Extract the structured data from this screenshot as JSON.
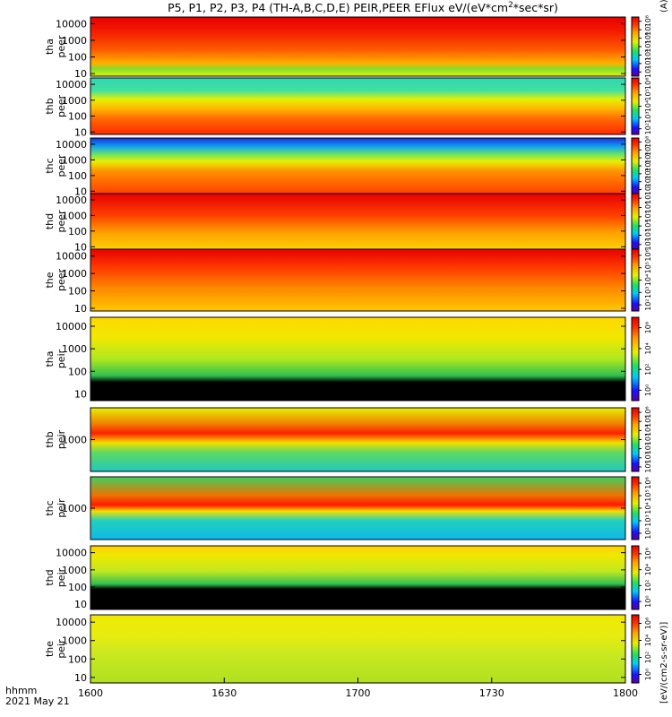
{
  "chart_data": {
    "type": "heatmap",
    "title": "P5, P1, P2, P3, P4 (TH-A,B,C,D,E) PEIR,PEER EFlux eV/(eV*cm^2*sec*sr)",
    "title_parts": {
      "prefix": "P5, P1, P2, P3, P4 (TH-A,B,C,D,E) PEIR,PEER EFlux eV/(eV*cm",
      "sup": "2",
      "suffix": "*sec*sr)"
    },
    "xlabel": "hhmm",
    "date_label": "2021 May 21",
    "x_ticks": [
      "1600",
      "1630",
      "1700",
      "1730",
      "1800"
    ],
    "x_range_minutes": [
      0,
      120
    ],
    "colorbar_label": "[eV/(cm2-s-sr-eV)]",
    "colorbar_partial_label": "(A)",
    "panels": [
      {
        "id": "tha-peer",
        "label1": "tha",
        "label2": "peer",
        "ylim": [
          7,
          25000
        ],
        "y_ticks": [
          "10",
          "100",
          "1000",
          "10000"
        ],
        "cbar_ticks": [
          "10^2",
          "10^3",
          "10^4",
          "10^5",
          "10^6",
          "10^7",
          "10^8"
        ]
      },
      {
        "id": "thb-peer",
        "label1": "thb",
        "label2": "peer",
        "ylim": [
          7,
          25000
        ],
        "y_ticks": [
          "10",
          "100",
          "1000",
          "10000"
        ],
        "cbar_ticks": [
          "10^2",
          "10^3",
          "10^4",
          "10^5",
          "10^6"
        ]
      },
      {
        "id": "thc-peer",
        "label1": "thc",
        "label2": "peer",
        "ylim": [
          7,
          25000
        ],
        "y_ticks": [
          "10",
          "100",
          "1000",
          "10000"
        ],
        "cbar_ticks": [
          "10^2",
          "10^3",
          "10^4",
          "10^5",
          "10^6",
          "10^7",
          "10^8"
        ]
      },
      {
        "id": "thd-peer",
        "label1": "thd",
        "label2": "peer",
        "ylim": [
          7,
          25000
        ],
        "y_ticks": [
          "10",
          "100",
          "1000",
          "10000"
        ],
        "cbar_ticks": [
          "10^2",
          "10^3",
          "10^4",
          "10^5",
          "10^6",
          "10^7"
        ]
      },
      {
        "id": "the-peer",
        "label1": "the",
        "label2": "peer",
        "ylim": [
          7,
          25000
        ],
        "y_ticks": [
          "10",
          "100",
          "1000",
          "10000"
        ],
        "cbar_ticks": [
          "10^2",
          "10^3",
          "10^4",
          "10^5",
          "10^6"
        ]
      },
      {
        "id": "tha-peir",
        "label1": "tha",
        "label2": "peir",
        "ylim": [
          5,
          25000
        ],
        "y_ticks": [
          "10",
          "100",
          "1000",
          "10000"
        ],
        "cbar_ticks": [
          "10^0",
          "10^2",
          "10^4",
          "10^6"
        ]
      },
      {
        "id": "thb-peir",
        "label1": "thb",
        "label2": "peir",
        "ylim": [
          100,
          10000
        ],
        "y_ticks": [
          "1000"
        ],
        "cbar_ticks": [
          "10^0",
          "10^1",
          "10^2",
          "10^3",
          "10^4",
          "10^5",
          "10^6"
        ]
      },
      {
        "id": "thc-peir",
        "label1": "thc",
        "label2": "peir",
        "ylim": [
          100,
          10000
        ],
        "y_ticks": [
          "1000"
        ],
        "cbar_ticks": [
          "10^2",
          "10^3",
          "10^4",
          "10^5",
          "10^6"
        ]
      },
      {
        "id": "thd-peir",
        "label1": "thd",
        "label2": "peir",
        "ylim": [
          5,
          25000
        ],
        "y_ticks": [
          "10",
          "100",
          "1000",
          "10000"
        ],
        "cbar_ticks": [
          "10^0",
          "10^2",
          "10^4",
          "10^6"
        ]
      },
      {
        "id": "the-peir",
        "label1": "the",
        "label2": "peir",
        "ylim": [
          5,
          25000
        ],
        "y_ticks": [
          "10",
          "100",
          "1000",
          "10000"
        ],
        "cbar_ticks": [
          "10^0",
          "10^2",
          "10^4",
          "10^6"
        ]
      }
    ]
  }
}
